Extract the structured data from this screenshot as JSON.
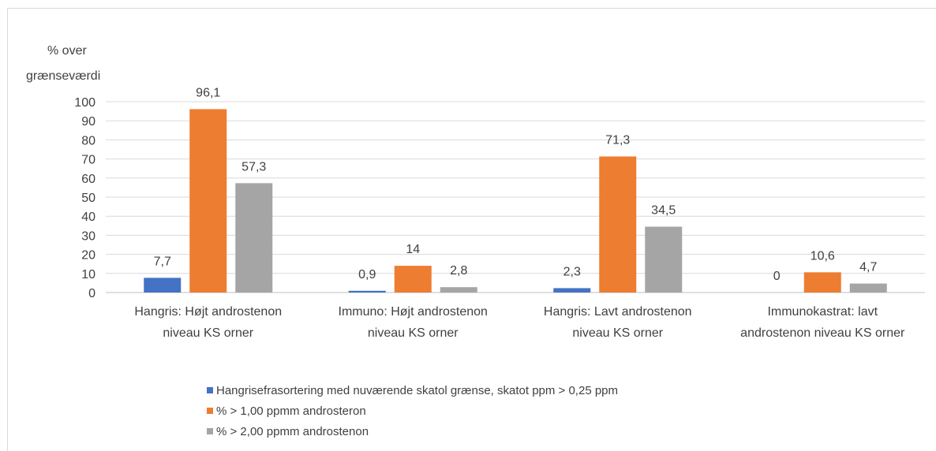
{
  "chart_data": {
    "type": "bar",
    "title": "",
    "ylabel_line1": "% over",
    "ylabel_line2": "grænseværdi",
    "xlabel": "",
    "ylim": [
      0,
      100
    ],
    "yticks": [
      "0",
      "10",
      "20",
      "30",
      "40",
      "50",
      "60",
      "70",
      "80",
      "90",
      "100"
    ],
    "grid": true,
    "legend_position": "bottom",
    "categories": [
      [
        "Hangris: Højt androstenon",
        "niveau KS orner"
      ],
      [
        "Immuno: Højt androstenon",
        "niveau KS orner"
      ],
      [
        "Hangris: Lavt androstenon",
        "niveau KS orner"
      ],
      [
        "Immunokastrat: lavt",
        "androstenon niveau KS orner"
      ]
    ],
    "series": [
      {
        "name": "Hangrisefrasortering med nuværende skatol grænse, skatot ppm > 0,25 ppm",
        "color": "#4472c4",
        "values": [
          7.7,
          0.9,
          2.3,
          0
        ],
        "labels": [
          "7,7",
          "0,9",
          "2,3",
          "0"
        ]
      },
      {
        "name": "% > 1,00 ppmm androsteron",
        "color": "#ed7d31",
        "values": [
          96.1,
          14,
          71.3,
          10.6
        ],
        "labels": [
          "96,1",
          "14",
          "71,3",
          "10,6"
        ]
      },
      {
        "name": "% > 2,00 ppmm androstenon",
        "color": "#a5a5a5",
        "values": [
          57.3,
          2.8,
          34.5,
          4.7
        ],
        "labels": [
          "57,3",
          "2,8",
          "34,5",
          "4,7"
        ]
      }
    ]
  }
}
